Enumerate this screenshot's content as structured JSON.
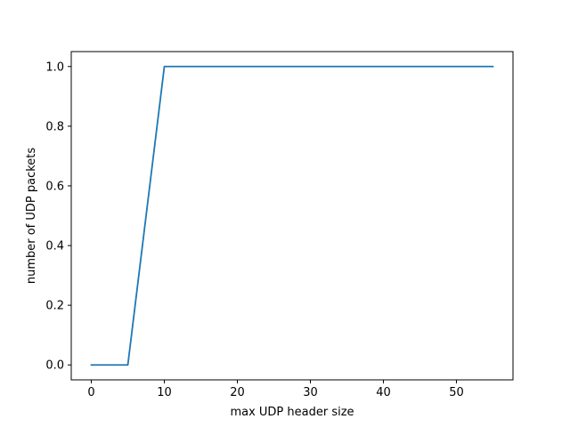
{
  "chart_data": {
    "type": "line",
    "title": "",
    "xlabel": "max UDP header size",
    "ylabel": "number of UDP packets",
    "xlim": [
      -2.75,
      57.75
    ],
    "ylim": [
      -0.05,
      1.05
    ],
    "xticks": [
      0,
      10,
      20,
      30,
      40,
      50
    ],
    "yticks": [
      0.0,
      0.2,
      0.4,
      0.6,
      0.8,
      1.0
    ],
    "xtick_labels": [
      "0",
      "10",
      "20",
      "30",
      "40",
      "50"
    ],
    "ytick_labels": [
      "0.0",
      "0.2",
      "0.4",
      "0.6",
      "0.8",
      "1.0"
    ],
    "grid": false,
    "series": [
      {
        "color": "#1f77b4",
        "x": [
          0,
          5,
          10,
          15,
          20,
          25,
          30,
          35,
          40,
          45,
          50,
          55
        ],
        "y": [
          0,
          0,
          1,
          1,
          1,
          1,
          1,
          1,
          1,
          1,
          1,
          1
        ]
      }
    ]
  }
}
